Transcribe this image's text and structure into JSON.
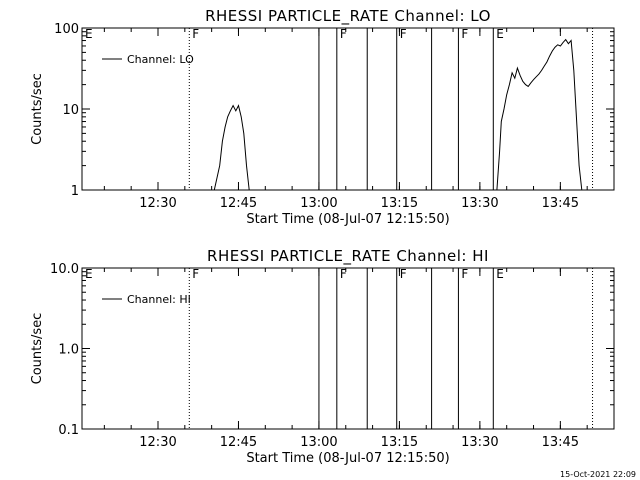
{
  "chart_data": [
    {
      "type": "line",
      "title": "RHESSI PARTICLE_RATE Channel: LO",
      "xlabel": "Start Time (08-Jul-07 12:15:50)",
      "ylabel": "Counts/sec",
      "yscale": "log",
      "ylim": [
        1,
        100
      ],
      "yticks": [
        1,
        10,
        100
      ],
      "ytick_labels": [
        "1",
        "10",
        "100"
      ],
      "xlim": [
        "12:15:50",
        "13:55:00"
      ],
      "xticks": [
        "12:30",
        "12:45",
        "13:00",
        "13:15",
        "13:30",
        "13:45"
      ],
      "legend": {
        "placement": "top-left",
        "entries": [
          "Channel: LO"
        ]
      },
      "grid": false,
      "series": [
        {
          "name": "Channel: LO",
          "segments": [
            [
              [
                "12:40:30",
                1.0
              ],
              [
                "12:41:30",
                2.0
              ],
              [
                "12:42:00",
                4.0
              ],
              [
                "12:42:30",
                6.0
              ],
              [
                "12:43:00",
                8.0
              ],
              [
                "12:43:30",
                9.5
              ],
              [
                "12:44:00",
                11.0
              ],
              [
                "12:44:30",
                9.5
              ],
              [
                "12:45:00",
                11.0
              ],
              [
                "12:45:30",
                8.0
              ],
              [
                "12:46:00",
                5.0
              ],
              [
                "12:46:30",
                2.0
              ],
              [
                "12:47:00",
                1.0
              ]
            ],
            [
              [
                "13:33:10",
                1.0
              ],
              [
                "13:33:40",
                3.0
              ],
              [
                "13:34:00",
                7.0
              ],
              [
                "13:34:30",
                10.0
              ],
              [
                "13:35:00",
                15.0
              ],
              [
                "13:35:30",
                20.0
              ],
              [
                "13:36:00",
                28.0
              ],
              [
                "13:36:30",
                24.0
              ],
              [
                "13:37:00",
                32.0
              ],
              [
                "13:37:30",
                26.0
              ],
              [
                "13:38:00",
                22.0
              ],
              [
                "13:38:30",
                20.0
              ],
              [
                "13:39:00",
                19.0
              ],
              [
                "13:39:30",
                21.0
              ],
              [
                "13:40:00",
                23.0
              ],
              [
                "13:40:30",
                25.0
              ],
              [
                "13:41:00",
                27.0
              ],
              [
                "13:41:30",
                30.0
              ],
              [
                "13:42:00",
                34.0
              ],
              [
                "13:42:30",
                38.0
              ],
              [
                "13:43:00",
                45.0
              ],
              [
                "13:43:30",
                52.0
              ],
              [
                "13:44:00",
                58.0
              ],
              [
                "13:44:30",
                62.0
              ],
              [
                "13:45:00",
                60.0
              ],
              [
                "13:45:30",
                66.0
              ],
              [
                "13:46:00",
                72.0
              ],
              [
                "13:46:30",
                64.0
              ],
              [
                "13:47:00",
                70.0
              ],
              [
                "13:47:30",
                30.0
              ],
              [
                "13:48:00",
                8.0
              ],
              [
                "13:48:30",
                2.0
              ],
              [
                "13:49:00",
                1.0
              ]
            ]
          ]
        }
      ]
    },
    {
      "type": "line",
      "title": "RHESSI PARTICLE_RATE Channel: HI",
      "xlabel": "Start Time (08-Jul-07 12:15:50)",
      "ylabel": "Counts/sec",
      "yscale": "log",
      "ylim": [
        0.1,
        10.0
      ],
      "yticks": [
        0.1,
        1.0,
        10.0
      ],
      "ytick_labels": [
        "0.1",
        "1.0",
        "10.0"
      ],
      "xlim": [
        "12:15:50",
        "13:55:00"
      ],
      "xticks": [
        "12:30",
        "12:45",
        "13:00",
        "13:15",
        "13:30",
        "13:45"
      ],
      "legend": {
        "placement": "top-left",
        "entries": [
          "Channel: HI"
        ]
      },
      "grid": false,
      "series": [
        {
          "name": "Channel: HI",
          "segments": []
        }
      ]
    }
  ],
  "markers": [
    {
      "time": "12:15:50",
      "label": "E",
      "style": "none"
    },
    {
      "time": "12:35:50",
      "label": "F",
      "style": "dotted"
    },
    {
      "time": "13:00:00",
      "label": "",
      "style": "solid"
    },
    {
      "time": "13:03:20",
      "label": "F",
      "style": "solid"
    },
    {
      "time": "13:09:00",
      "label": "",
      "style": "solid"
    },
    {
      "time": "13:14:30",
      "label": "F",
      "style": "solid"
    },
    {
      "time": "13:21:00",
      "label": "",
      "style": "solid"
    },
    {
      "time": "13:26:00",
      "label": "F",
      "style": "solid"
    },
    {
      "time": "13:32:30",
      "label": "E",
      "style": "solid"
    },
    {
      "time": "13:51:00",
      "label": "",
      "style": "dotted"
    }
  ],
  "colors": {
    "background": "#ffffff",
    "foreground": "#000000"
  },
  "timestamp": "15-Oct-2021 22:09"
}
